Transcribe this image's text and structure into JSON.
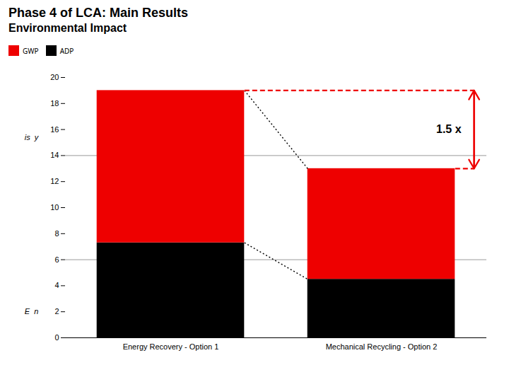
{
  "chart_data": {
    "type": "bar",
    "title": "Phase 4 of LCA: Main Results",
    "subtitle": "Environmental Impact",
    "categories": [
      "Energy Recovery - Option 1",
      "Mechanical Recycling - Option 2"
    ],
    "series": [
      {
        "name": "ADP",
        "color": "#000000",
        "values": [
          7.3,
          4.5
        ]
      },
      {
        "name": "GWP",
        "color": "#ee0000",
        "values": [
          11.7,
          8.5
        ]
      }
    ],
    "stacked": true,
    "totals": [
      19,
      13
    ],
    "hlines": [
      6,
      14
    ],
    "annotations": [
      "1.5 x",
      "is  y",
      "E  n"
    ],
    "ylim": [
      0,
      20
    ],
    "yticks": [
      0,
      2,
      4,
      6,
      8,
      10,
      12,
      14,
      16,
      18,
      20
    ],
    "grid": false,
    "legend": "top"
  }
}
